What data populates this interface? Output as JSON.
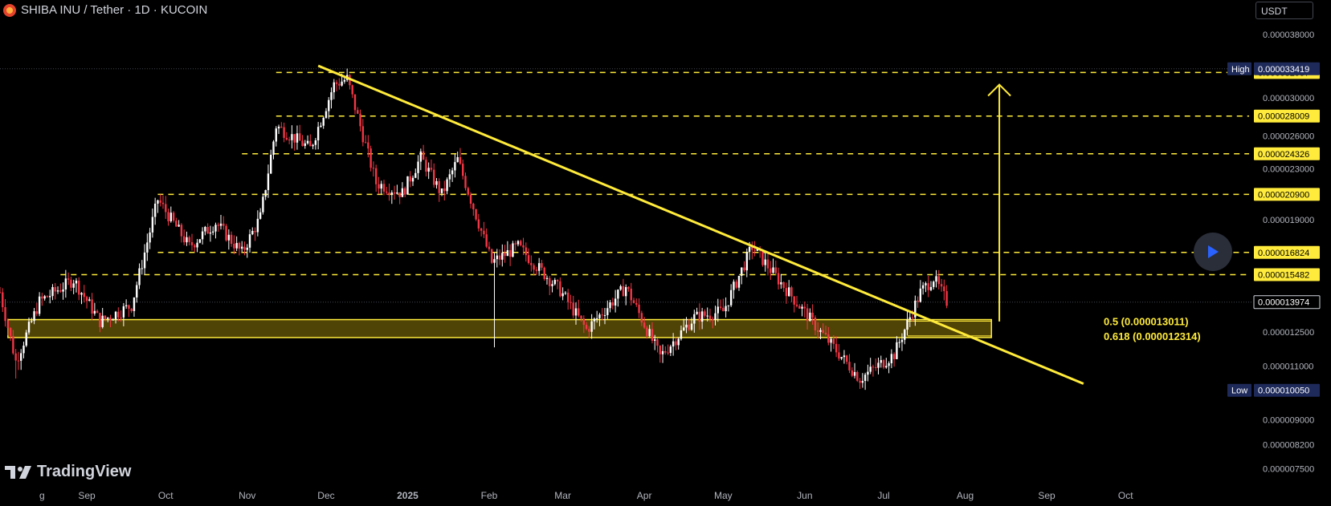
{
  "header": {
    "title": "SHIBA INU / Tether · 1D · KUCOIN",
    "currency": "USDT"
  },
  "branding": {
    "logo_text": "TradingView"
  },
  "colors": {
    "background": "#000000",
    "up_candle": "#ffffff",
    "down_candle": "#f23645",
    "annotation": "#ffeb3b",
    "zone_fill": "#6b5a08",
    "label_navy": "#1e2a5a"
  },
  "icons": {
    "symbol": "shiba-coin-icon",
    "play": "play-icon",
    "logo": "tradingview-logo-icon"
  },
  "chart_data": {
    "type": "candlestick",
    "y_scale": "log",
    "ylim": [
      7.2e-06,
      3.95e-05
    ],
    "xlim": [
      "2024-07-30",
      "2025-10-22"
    ],
    "x_ticks": [
      {
        "date": "2024-08-15",
        "label": "g"
      },
      {
        "date": "2024-09-01",
        "label": "Sep"
      },
      {
        "date": "2024-10-01",
        "label": "Oct"
      },
      {
        "date": "2024-11-01",
        "label": "Nov"
      },
      {
        "date": "2024-12-01",
        "label": "Dec"
      },
      {
        "date": "2025-01-01",
        "label": "2025"
      },
      {
        "date": "2025-02-01",
        "label": "Feb"
      },
      {
        "date": "2025-03-01",
        "label": "Mar"
      },
      {
        "date": "2025-04-01",
        "label": "Apr"
      },
      {
        "date": "2025-05-01",
        "label": "May"
      },
      {
        "date": "2025-06-01",
        "label": "Jun"
      },
      {
        "date": "2025-07-01",
        "label": "Jul"
      },
      {
        "date": "2025-08-01",
        "label": "Aug"
      },
      {
        "date": "2025-09-01",
        "label": "Sep"
      },
      {
        "date": "2025-10-01",
        "label": "Oct"
      }
    ],
    "y_ticks": [
      "0.000038000",
      "0.000030000",
      "0.000026000",
      "0.000023000",
      "0.000019000",
      "0.000012500",
      "0.000011000",
      "0.000009000",
      "0.000008200",
      "0.000007500"
    ],
    "price_line_anchors": [
      [
        "2024-07-30",
        1.45e-05
      ],
      [
        "2024-08-05",
        1.12e-05
      ],
      [
        "2024-08-14",
        1.4e-05
      ],
      [
        "2024-08-27",
        1.52e-05
      ],
      [
        "2024-09-06",
        1.3e-05
      ],
      [
        "2024-09-18",
        1.38e-05
      ],
      [
        "2024-09-28",
        2.05e-05
      ],
      [
        "2024-10-10",
        1.72e-05
      ],
      [
        "2024-10-20",
        1.88e-05
      ],
      [
        "2024-10-30",
        1.68e-05
      ],
      [
        "2024-11-06",
        1.92e-05
      ],
      [
        "2024-11-12",
        2.7e-05
      ],
      [
        "2024-11-25",
        2.48e-05
      ],
      [
        "2024-12-04",
        3.15e-05
      ],
      [
        "2024-12-09",
        3.22e-05
      ],
      [
        "2024-12-20",
        2.18e-05
      ],
      [
        "2024-12-30",
        2.1e-05
      ],
      [
        "2025-01-06",
        2.4e-05
      ],
      [
        "2025-01-14",
        2.09e-05
      ],
      [
        "2025-01-20",
        2.38e-05
      ],
      [
        "2025-02-02",
        1.62e-05
      ],
      [
        "2025-02-12",
        1.72e-05
      ],
      [
        "2025-02-28",
        1.46e-05
      ],
      [
        "2025-03-10",
        1.26e-05
      ],
      [
        "2025-03-25",
        1.48e-05
      ],
      [
        "2025-04-07",
        1.14e-05
      ],
      [
        "2025-04-20",
        1.32e-05
      ],
      [
        "2025-05-01",
        1.35e-05
      ],
      [
        "2025-05-12",
        1.72e-05
      ],
      [
        "2025-05-22",
        1.52e-05
      ],
      [
        "2025-06-05",
        1.28e-05
      ],
      [
        "2025-06-22",
        1.05e-05
      ],
      [
        "2025-07-05",
        1.15e-05
      ],
      [
        "2025-07-15",
        1.45e-05
      ],
      [
        "2025-07-20",
        1.53e-05
      ],
      [
        "2025-07-25",
        1.4e-05
      ]
    ],
    "wicks": [
      {
        "date": "2024-08-05",
        "low": 1.05e-05
      },
      {
        "date": "2025-02-03",
        "low": 1.18e-05
      },
      {
        "date": "2025-06-22",
        "low": 1.01e-05
      }
    ],
    "high": {
      "label": "High",
      "value": "0.000033419"
    },
    "low": {
      "label": "Low",
      "value": "0.000010050"
    },
    "current_price": "0.000013974",
    "horizontal_levels": [
      "0.000032957",
      "0.000028009",
      "0.000024326",
      "0.000020900",
      "0.000016824",
      "0.000015482"
    ],
    "level_values": [
      3.2957e-05,
      2.8009e-05,
      2.4326e-05,
      2.09e-05,
      1.6824e-05,
      1.5482e-05
    ],
    "level_starts": [
      "2024-11-12",
      "2024-11-12",
      "2024-10-30",
      "2024-09-28",
      "2024-09-28",
      "2024-08-22"
    ],
    "support_zone": {
      "from": "2024-08-02",
      "to": "2025-08-11",
      "top": 1.3011e-05,
      "bottom": 1.2314e-05
    },
    "fib_levels": [
      {
        "label": "0.5 (0.000013011)",
        "value": 1.3011e-05
      },
      {
        "label": "0.618 (0.000012314)",
        "value": 1.2314e-05
      }
    ],
    "trendline": {
      "start": [
        "2024-11-28",
        3.38e-05
      ],
      "end": [
        "2025-09-15",
        1.03e-05
      ]
    },
    "target_arrow": {
      "date": "2025-08-14",
      "from": 1.3e-05,
      "to": 3.15e-05
    }
  }
}
